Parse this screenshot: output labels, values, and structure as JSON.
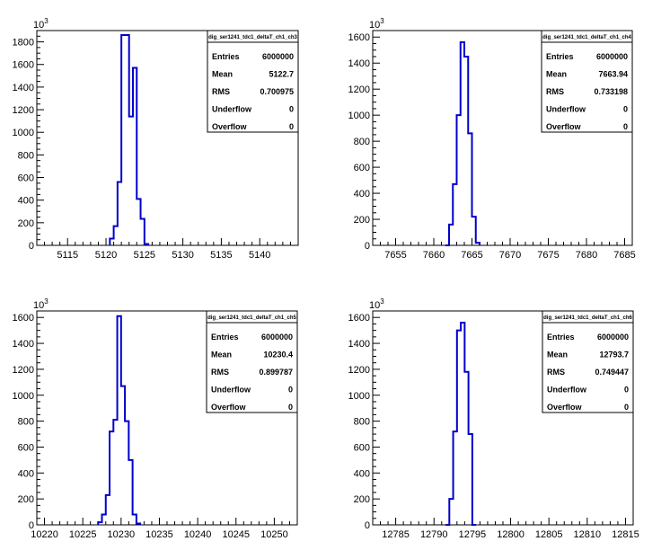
{
  "chart_data": [
    {
      "type": "bar",
      "title": "dig_ser1241_tdc1_deltaT_ch1_ch3",
      "xlim": [
        5111,
        5145
      ],
      "ylim": [
        0,
        1900
      ],
      "y_multiplier_label": "10",
      "y_multiplier_exp": "3",
      "xticks": [
        5115,
        5120,
        5125,
        5130,
        5135,
        5140
      ],
      "yticks": [
        0,
        200,
        400,
        600,
        800,
        1000,
        1200,
        1400,
        1600,
        1800
      ],
      "bin_width": 0.5,
      "bins": [
        [
          5120.5,
          60
        ],
        [
          5121.0,
          170
        ],
        [
          5121.5,
          560
        ],
        [
          5122.0,
          1860
        ],
        [
          5122.5,
          1860
        ],
        [
          5123.0,
          1140
        ],
        [
          5123.5,
          1570
        ],
        [
          5124.0,
          410
        ],
        [
          5124.5,
          235
        ],
        [
          5125.0,
          12
        ]
      ],
      "stats": {
        "entries": "6000000",
        "mean": "5122.7",
        "rms": "0.700975",
        "underflow": "0",
        "overflow": "0"
      }
    },
    {
      "type": "bar",
      "title": "dig_ser1241_tdc1_deltaT_ch1_ch4",
      "xlim": [
        7652,
        7686
      ],
      "ylim": [
        0,
        1650
      ],
      "y_multiplier_label": "10",
      "y_multiplier_exp": "3",
      "xticks": [
        7655,
        7660,
        7665,
        7670,
        7675,
        7680,
        7685
      ],
      "yticks": [
        0,
        200,
        400,
        600,
        800,
        1000,
        1200,
        1400,
        1600
      ],
      "bin_width": 0.5,
      "bins": [
        [
          7661.5,
          0
        ],
        [
          7662.0,
          160
        ],
        [
          7662.5,
          470
        ],
        [
          7663.0,
          1000
        ],
        [
          7663.5,
          1560
        ],
        [
          7664.0,
          1450
        ],
        [
          7664.5,
          860
        ],
        [
          7665.0,
          220
        ],
        [
          7665.5,
          20
        ]
      ],
      "stats": {
        "entries": "6000000",
        "mean": "7663.94",
        "rms": "0.733198",
        "underflow": "0",
        "overflow": "0"
      }
    },
    {
      "type": "bar",
      "title": "dig_ser1241_tdc1_deltaT_ch1_ch5",
      "xlim": [
        10219,
        10253
      ],
      "ylim": [
        0,
        1650
      ],
      "y_multiplier_label": "10",
      "y_multiplier_exp": "3",
      "xticks": [
        10220,
        10225,
        10230,
        10235,
        10240,
        10245,
        10250
      ],
      "yticks": [
        0,
        200,
        400,
        600,
        800,
        1000,
        1200,
        1400,
        1600
      ],
      "bin_width": 0.5,
      "bins": [
        [
          10227.0,
          20
        ],
        [
          10227.5,
          80
        ],
        [
          10228.0,
          230
        ],
        [
          10228.5,
          720
        ],
        [
          10229.0,
          810
        ],
        [
          10229.5,
          1610
        ],
        [
          10230.0,
          1070
        ],
        [
          10230.5,
          800
        ],
        [
          10231.0,
          500
        ],
        [
          10231.5,
          80
        ],
        [
          10232.0,
          10
        ]
      ],
      "stats": {
        "entries": "6000000",
        "mean": "10230.4",
        "rms": "0.899787",
        "underflow": "0",
        "overflow": "0"
      }
    },
    {
      "type": "bar",
      "title": "dig_ser1241_tdc1_deltaT_ch1_ch6",
      "xlim": [
        12782,
        12816
      ],
      "ylim": [
        0,
        1650
      ],
      "y_multiplier_label": "10",
      "y_multiplier_exp": "3",
      "xticks": [
        12785,
        12790,
        12795,
        12800,
        12805,
        12810,
        12815
      ],
      "yticks": [
        0,
        200,
        400,
        600,
        800,
        1000,
        1200,
        1400,
        1600
      ],
      "bin_width": 0.5,
      "bins": [
        [
          12791.5,
          0
        ],
        [
          12792.0,
          200
        ],
        [
          12792.5,
          720
        ],
        [
          12793.0,
          1500
        ],
        [
          12793.5,
          1560
        ],
        [
          12794.0,
          1180
        ],
        [
          12794.5,
          700
        ],
        [
          12795.0,
          0
        ]
      ],
      "stats": {
        "entries": "6000000",
        "mean": "12793.7",
        "rms": "0.749447",
        "underflow": "0",
        "overflow": "0"
      }
    }
  ],
  "stats_labels": {
    "entries": "Entries",
    "mean": "Mean",
    "rms": "RMS",
    "underflow": "Underflow",
    "overflow": "Overflow"
  },
  "colors": {
    "histogram": "#0000cc",
    "axis": "#000000",
    "background": "#ffffff"
  }
}
